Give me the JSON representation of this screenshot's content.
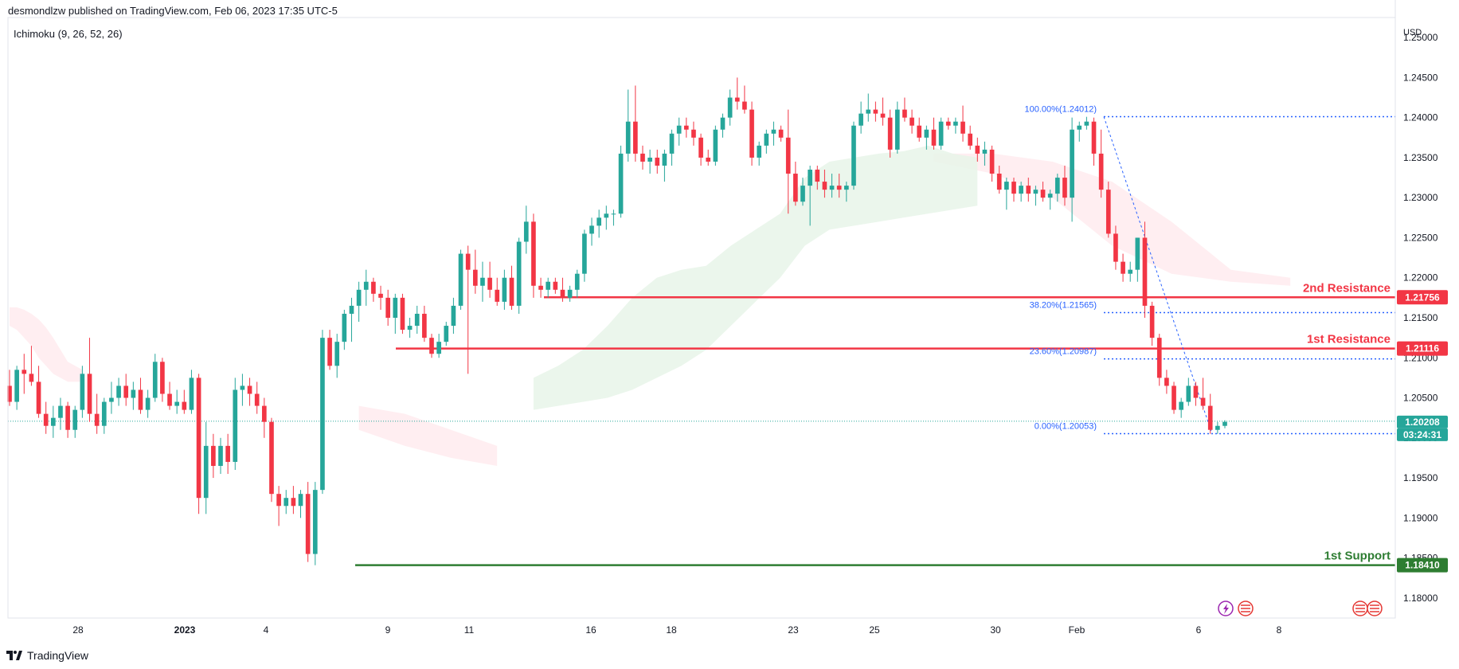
{
  "header": {
    "published": "desmondlzw published on TradingView.com, Feb 06, 2023 17:35 UTC-5"
  },
  "indicator": {
    "label": "Ichimoku (9, 26, 52, 26)"
  },
  "footer": {
    "brand": "TradingView"
  },
  "colors": {
    "up": "#26a69a",
    "down": "#f23645",
    "resistance": "#f23645",
    "support": "#2e7d32",
    "fib": "#2962ff",
    "cloud_bull": "#e8f5e9",
    "cloud_bear": "#ffebee"
  },
  "icons": {
    "bottom_left": "lightning-icon",
    "bottom_flags": [
      "uk-flag-icon",
      "us-flag-icon"
    ]
  },
  "chart_data": {
    "type": "candlestick",
    "symbol_note": "EURUSD-like",
    "currency_label": "USD",
    "ylim": [
      1.1775,
      1.2525
    ],
    "price_ticks": [
      "1.25000",
      "1.24500",
      "1.24000",
      "1.23500",
      "1.23000",
      "1.22500",
      "1.22000",
      "1.21500",
      "1.21000",
      "1.20500",
      "1.20000",
      "1.19500",
      "1.19000",
      "1.18500",
      "1.18000"
    ],
    "date_ticks": [
      "28",
      "2023",
      "4",
      "9",
      "11",
      "16",
      "18",
      "23",
      "25",
      "30",
      "Feb",
      "6",
      "8"
    ],
    "candles": [
      [
        1.2065,
        1.2085,
        1.204,
        1.2045
      ],
      [
        1.2045,
        1.209,
        1.2035,
        1.2085
      ],
      [
        1.2085,
        1.2105,
        1.2055,
        1.208
      ],
      [
        1.208,
        1.2115,
        1.2065,
        1.207
      ],
      [
        1.207,
        1.209,
        1.2025,
        1.203
      ],
      [
        1.203,
        1.2045,
        1.2005,
        1.2015
      ],
      [
        1.2015,
        1.204,
        1.2,
        1.2025
      ],
      [
        1.2025,
        1.205,
        1.201,
        1.204
      ],
      [
        1.204,
        1.2045,
        1.2,
        1.201
      ],
      [
        1.201,
        1.204,
        1.2,
        1.2035
      ],
      [
        1.2035,
        1.209,
        1.2025,
        1.208
      ],
      [
        1.208,
        1.2125,
        1.202,
        1.203
      ],
      [
        1.203,
        1.2055,
        1.2005,
        1.2015
      ],
      [
        1.2015,
        1.205,
        1.2005,
        1.2045
      ],
      [
        1.2045,
        1.207,
        1.203,
        1.205
      ],
      [
        1.205,
        1.2075,
        1.204,
        1.2065
      ],
      [
        1.2065,
        1.208,
        1.204,
        1.205
      ],
      [
        1.205,
        1.207,
        1.2035,
        1.206
      ],
      [
        1.206,
        1.2075,
        1.203,
        1.2035
      ],
      [
        1.2035,
        1.206,
        1.2025,
        1.205
      ],
      [
        1.205,
        1.2105,
        1.2045,
        1.2095
      ],
      [
        1.2095,
        1.21,
        1.2045,
        1.2055
      ],
      [
        1.2055,
        1.207,
        1.2035,
        1.204
      ],
      [
        1.204,
        1.206,
        1.203,
        1.2045
      ],
      [
        1.2045,
        1.206,
        1.203,
        1.2035
      ],
      [
        1.2035,
        1.2085,
        1.203,
        1.2075
      ],
      [
        1.2075,
        1.208,
        1.1905,
        1.1925
      ],
      [
        1.1925,
        1.202,
        1.1905,
        1.199
      ],
      [
        1.199,
        1.2005,
        1.195,
        1.1965
      ],
      [
        1.1965,
        1.2,
        1.1955,
        1.199
      ],
      [
        1.199,
        1.2005,
        1.1955,
        1.197
      ],
      [
        1.197,
        1.2075,
        1.196,
        1.206
      ],
      [
        1.206,
        1.208,
        1.204,
        1.2065
      ],
      [
        1.2065,
        1.2075,
        1.204,
        1.2055
      ],
      [
        1.2055,
        1.207,
        1.203,
        1.204
      ],
      [
        1.204,
        1.205,
        1.2,
        1.202
      ],
      [
        1.202,
        1.2025,
        1.192,
        1.193
      ],
      [
        1.193,
        1.194,
        1.189,
        1.1915
      ],
      [
        1.1915,
        1.1935,
        1.1905,
        1.1925
      ],
      [
        1.1925,
        1.194,
        1.1905,
        1.1915
      ],
      [
        1.1915,
        1.1935,
        1.19,
        1.193
      ],
      [
        1.193,
        1.1945,
        1.1845,
        1.1855
      ],
      [
        1.1855,
        1.1945,
        1.1841,
        1.1935
      ],
      [
        1.1935,
        1.2135,
        1.193,
        1.2125
      ],
      [
        1.2125,
        1.2135,
        1.2085,
        1.209
      ],
      [
        1.209,
        1.213,
        1.2075,
        1.212
      ],
      [
        1.212,
        1.216,
        1.211,
        1.2155
      ],
      [
        1.2155,
        1.2175,
        1.212,
        1.2165
      ],
      [
        1.2165,
        1.2195,
        1.2145,
        1.2185
      ],
      [
        1.2185,
        1.221,
        1.2165,
        1.2195
      ],
      [
        1.2195,
        1.22,
        1.217,
        1.218
      ],
      [
        1.218,
        1.219,
        1.216,
        1.2175
      ],
      [
        1.2175,
        1.2185,
        1.214,
        1.215
      ],
      [
        1.215,
        1.218,
        1.213,
        1.2175
      ],
      [
        1.2175,
        1.218,
        1.213,
        1.2135
      ],
      [
        1.2135,
        1.215,
        1.2125,
        1.214
      ],
      [
        1.214,
        1.2165,
        1.213,
        1.2155
      ],
      [
        1.2155,
        1.2165,
        1.212,
        1.2125
      ],
      [
        1.2125,
        1.213,
        1.21,
        1.2105
      ],
      [
        1.2105,
        1.213,
        1.21,
        1.212
      ],
      [
        1.212,
        1.2145,
        1.2115,
        1.214
      ],
      [
        1.214,
        1.2175,
        1.213,
        1.2165
      ],
      [
        1.2165,
        1.2235,
        1.216,
        1.223
      ],
      [
        1.223,
        1.224,
        1.208,
        1.221
      ],
      [
        1.221,
        1.2235,
        1.218,
        1.219
      ],
      [
        1.219,
        1.222,
        1.217,
        1.22
      ],
      [
        1.22,
        1.222,
        1.2175,
        1.2185
      ],
      [
        1.2185,
        1.22,
        1.2165,
        1.217
      ],
      [
        1.217,
        1.221,
        1.216,
        1.22
      ],
      [
        1.22,
        1.2215,
        1.216,
        1.2165
      ],
      [
        1.2165,
        1.225,
        1.2155,
        1.2245
      ],
      [
        1.2245,
        1.229,
        1.223,
        1.227
      ],
      [
        1.227,
        1.228,
        1.2175,
        1.219
      ],
      [
        1.219,
        1.22,
        1.2175,
        1.2185
      ],
      [
        1.2185,
        1.22,
        1.2175,
        1.2195
      ],
      [
        1.2195,
        1.22,
        1.218,
        1.2185
      ],
      [
        1.2185,
        1.22,
        1.217,
        1.2175
      ],
      [
        1.2175,
        1.219,
        1.217,
        1.2185
      ],
      [
        1.2185,
        1.221,
        1.2175,
        1.2205
      ],
      [
        1.2205,
        1.226,
        1.2195,
        1.2255
      ],
      [
        1.2255,
        1.2275,
        1.224,
        1.2265
      ],
      [
        1.2265,
        1.2285,
        1.225,
        1.2275
      ],
      [
        1.2275,
        1.229,
        1.226,
        1.228
      ],
      [
        1.228,
        1.2285,
        1.2265,
        1.228
      ],
      [
        1.228,
        1.2365,
        1.2275,
        1.2355
      ],
      [
        1.2355,
        1.2435,
        1.2345,
        1.2395
      ],
      [
        1.2395,
        1.244,
        1.2345,
        1.2355
      ],
      [
        1.2355,
        1.2365,
        1.2335,
        1.2345
      ],
      [
        1.2345,
        1.236,
        1.233,
        1.235
      ],
      [
        1.235,
        1.236,
        1.233,
        1.234
      ],
      [
        1.234,
        1.236,
        1.232,
        1.2355
      ],
      [
        1.2355,
        1.2385,
        1.234,
        1.238
      ],
      [
        1.238,
        1.24,
        1.2365,
        1.239
      ],
      [
        1.239,
        1.24,
        1.2375,
        1.2385
      ],
      [
        1.2385,
        1.2395,
        1.2365,
        1.2375
      ],
      [
        1.2375,
        1.238,
        1.234,
        1.235
      ],
      [
        1.235,
        1.236,
        1.234,
        1.2345
      ],
      [
        1.2345,
        1.239,
        1.234,
        1.2385
      ],
      [
        1.2385,
        1.2405,
        1.2375,
        1.24
      ],
      [
        1.24,
        1.2435,
        1.239,
        1.2425
      ],
      [
        1.2425,
        1.245,
        1.241,
        1.242
      ],
      [
        1.242,
        1.244,
        1.2405,
        1.241
      ],
      [
        1.241,
        1.242,
        1.234,
        1.235
      ],
      [
        1.235,
        1.237,
        1.234,
        1.2365
      ],
      [
        1.2365,
        1.2385,
        1.2355,
        1.238
      ],
      [
        1.238,
        1.2395,
        1.2365,
        1.2385
      ],
      [
        1.2385,
        1.239,
        1.237,
        1.2375
      ],
      [
        1.2375,
        1.241,
        1.228,
        1.233
      ],
      [
        1.233,
        1.2345,
        1.229,
        1.2295
      ],
      [
        1.2295,
        1.2325,
        1.229,
        1.2315
      ],
      [
        1.2315,
        1.234,
        1.2265,
        1.2335
      ],
      [
        1.2335,
        1.234,
        1.231,
        1.232
      ],
      [
        1.232,
        1.2335,
        1.23,
        1.231
      ],
      [
        1.231,
        1.233,
        1.23,
        1.2315
      ],
      [
        1.2315,
        1.233,
        1.23,
        1.231
      ],
      [
        1.231,
        1.232,
        1.2295,
        1.2315
      ],
      [
        1.2315,
        1.2395,
        1.231,
        1.239
      ],
      [
        1.239,
        1.242,
        1.238,
        1.2405
      ],
      [
        1.2405,
        1.243,
        1.2395,
        1.241
      ],
      [
        1.241,
        1.242,
        1.2395,
        1.2405
      ],
      [
        1.2405,
        1.2425,
        1.239,
        1.24
      ],
      [
        1.24,
        1.241,
        1.235,
        1.236
      ],
      [
        1.236,
        1.242,
        1.2355,
        1.241
      ],
      [
        1.241,
        1.2425,
        1.2395,
        1.24
      ],
      [
        1.24,
        1.241,
        1.238,
        1.239
      ],
      [
        1.239,
        1.24,
        1.237,
        1.2375
      ],
      [
        1.2375,
        1.239,
        1.236,
        1.2385
      ],
      [
        1.2385,
        1.24,
        1.236,
        1.2365
      ],
      [
        1.2365,
        1.24,
        1.236,
        1.2395
      ],
      [
        1.2395,
        1.24,
        1.2385,
        1.239
      ],
      [
        1.239,
        1.24,
        1.238,
        1.2395
      ],
      [
        1.2395,
        1.2415,
        1.237,
        1.238
      ],
      [
        1.238,
        1.239,
        1.236,
        1.2365
      ],
      [
        1.2365,
        1.2375,
        1.2345,
        1.2355
      ],
      [
        1.2355,
        1.237,
        1.234,
        1.236
      ],
      [
        1.236,
        1.2365,
        1.232,
        1.233
      ],
      [
        1.233,
        1.234,
        1.2305,
        1.231
      ],
      [
        1.231,
        1.2325,
        1.2285,
        1.232
      ],
      [
        1.232,
        1.2325,
        1.2295,
        1.2305
      ],
      [
        1.2305,
        1.232,
        1.2295,
        1.2315
      ],
      [
        1.2315,
        1.2325,
        1.2295,
        1.2305
      ],
      [
        1.2305,
        1.2315,
        1.229,
        1.231
      ],
      [
        1.231,
        1.232,
        1.2295,
        1.23
      ],
      [
        1.23,
        1.231,
        1.2285,
        1.2305
      ],
      [
        1.2305,
        1.233,
        1.2295,
        1.2325
      ],
      [
        1.2325,
        1.234,
        1.229,
        1.23
      ],
      [
        1.23,
        1.24,
        1.227,
        1.2385
      ],
      [
        1.2385,
        1.2395,
        1.237,
        1.239
      ],
      [
        1.239,
        1.2401,
        1.2385,
        1.2395
      ],
      [
        1.2395,
        1.24,
        1.234,
        1.2355
      ],
      [
        1.2355,
        1.2385,
        1.23,
        1.231
      ],
      [
        1.231,
        1.232,
        1.225,
        1.2255
      ],
      [
        1.2255,
        1.2265,
        1.221,
        1.222
      ],
      [
        1.222,
        1.223,
        1.2195,
        1.2205
      ],
      [
        1.2205,
        1.222,
        1.2195,
        1.221
      ],
      [
        1.221,
        1.225,
        1.2195,
        1.225
      ],
      [
        1.225,
        1.227,
        1.215,
        1.2165
      ],
      [
        1.2165,
        1.217,
        1.2115,
        1.2125
      ],
      [
        1.2125,
        1.213,
        1.2065,
        1.2075
      ],
      [
        1.2075,
        1.2085,
        1.2055,
        1.2065
      ],
      [
        1.2065,
        1.207,
        1.203,
        1.2035
      ],
      [
        1.2035,
        1.205,
        1.2025,
        1.2045
      ],
      [
        1.2045,
        1.2075,
        1.204,
        1.2065
      ],
      [
        1.2065,
        1.207,
        1.204,
        1.205
      ],
      [
        1.205,
        1.2075,
        1.2035,
        1.204
      ],
      [
        1.204,
        1.2055,
        1.2005,
        1.201
      ],
      [
        1.201,
        1.202,
        1.2005,
        1.2015
      ],
      [
        1.2015,
        1.2022,
        1.2012,
        1.202
      ]
    ],
    "ichimoku_cloud": {
      "bear_segments": [
        {
          "upper": [
            1.2163,
            1.2163,
            1.216,
            1.2155,
            1.2148,
            1.2138,
            1.2125,
            1.211,
            1.2095,
            1.209,
            1.2085
          ],
          "lower": [
            1.214,
            1.2135,
            1.2125,
            1.2115,
            1.21,
            1.209,
            1.208,
            1.2075,
            1.207,
            1.207,
            1.207
          ]
        },
        {
          "upper": [
            1.204,
            1.203,
            1.201,
            1.199
          ],
          "lower": [
            1.201,
            1.199,
            1.1975,
            1.1965
          ]
        },
        {
          "upper": [
            1.2355,
            1.2355,
            1.2345,
            1.232,
            1.227,
            1.221,
            1.22
          ],
          "lower": [
            1.2345,
            1.233,
            1.23,
            1.224,
            1.2205,
            1.2195,
            1.219
          ]
        }
      ],
      "bull_segment": {
        "upper": [
          1.2075,
          1.209,
          1.211,
          1.214,
          1.2175,
          1.22,
          1.221,
          1.2215,
          1.224,
          1.226,
          1.228,
          1.2325,
          1.2345,
          1.235,
          1.2355,
          1.2358,
          1.2365,
          1.2355,
          1.235
        ],
        "lower": [
          1.2035,
          1.204,
          1.2045,
          1.205,
          1.206,
          1.2075,
          1.209,
          1.211,
          1.214,
          1.217,
          1.22,
          1.224,
          1.226,
          1.2265,
          1.227,
          1.2275,
          1.228,
          1.2285,
          1.229
        ]
      }
    },
    "levels": [
      {
        "name": "2nd Resistance",
        "value": "1.21756",
        "price": 1.21756,
        "kind": "resistance"
      },
      {
        "name": "1st Resistance",
        "value": "1.21116",
        "price": 1.21116,
        "kind": "resistance"
      },
      {
        "name": "1st Support",
        "value": "1.18410",
        "price": 1.1841,
        "kind": "support"
      }
    ],
    "fibonacci": [
      {
        "label": "100.00%(1.24012)",
        "price": 1.24012
      },
      {
        "label": "38.20%(1.21565)",
        "price": 1.21565
      },
      {
        "label": "23.60%(1.20987)",
        "price": 1.20987
      },
      {
        "label": "0.00%(1.20053)",
        "price": 1.20053
      }
    ],
    "current_price": {
      "value": "1.20208",
      "price": 1.20208,
      "countdown": "03:24:31"
    }
  }
}
